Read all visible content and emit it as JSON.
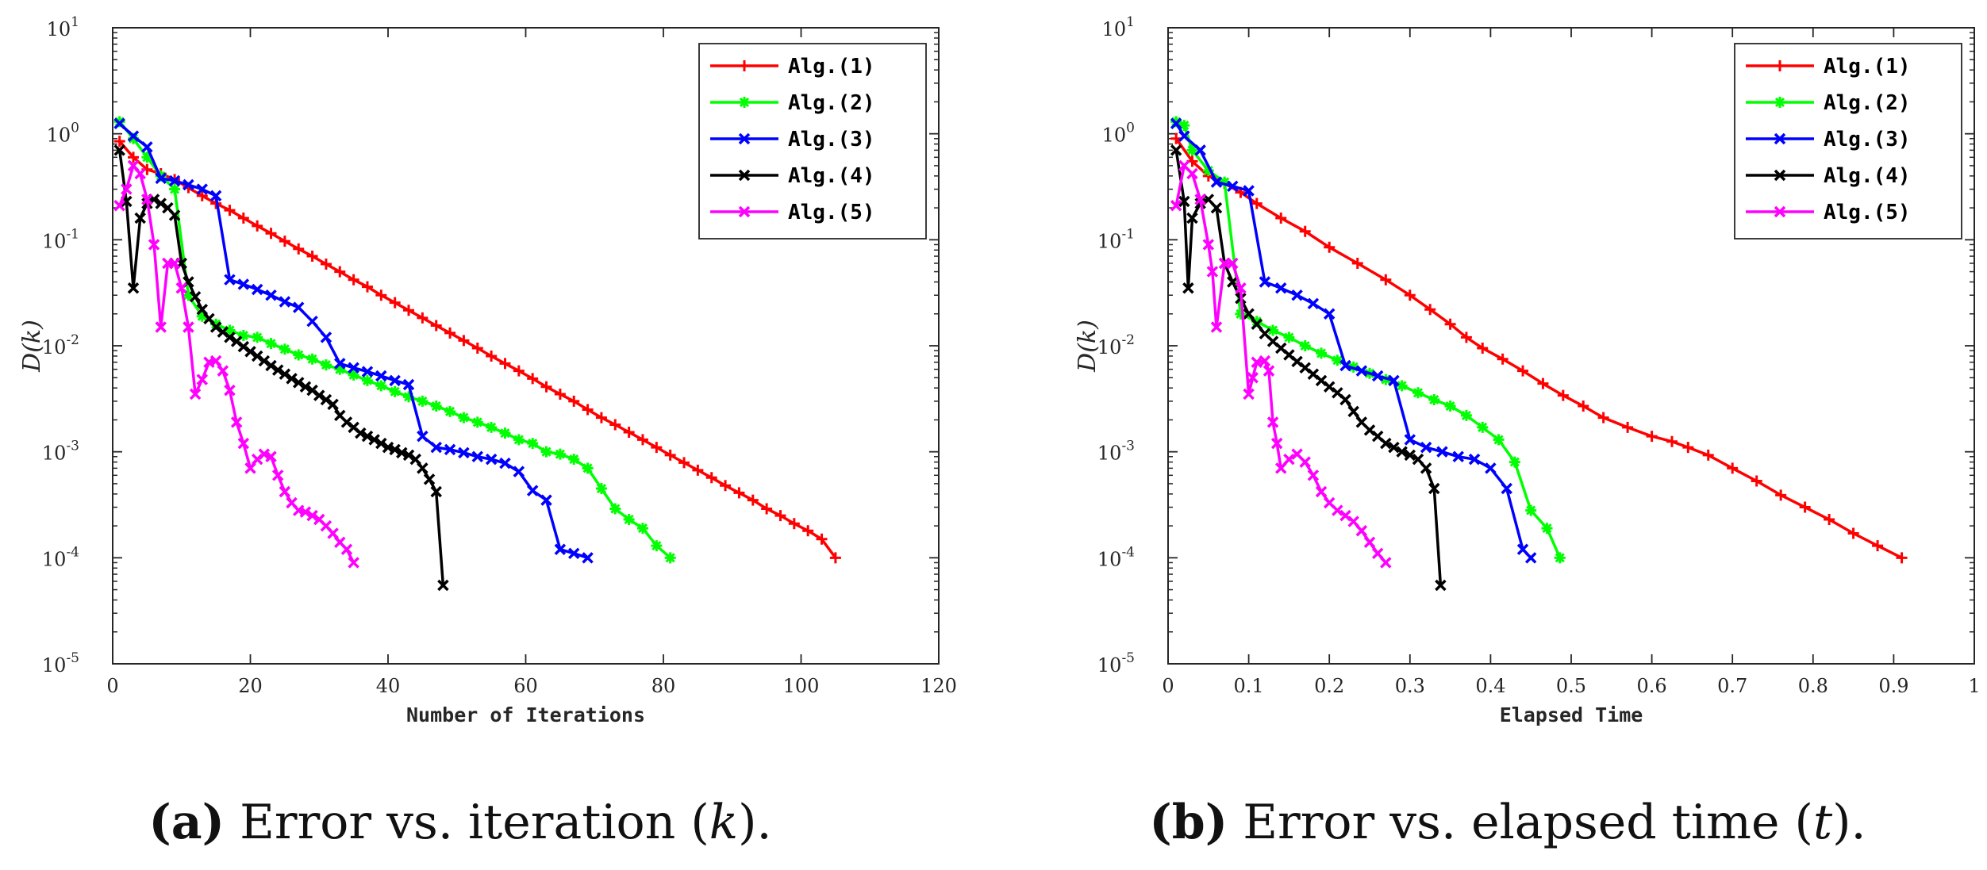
{
  "colors": {
    "alg1": "#ff0000",
    "alg2": "#00ff00",
    "alg3": "#0000ff",
    "alg4": "#000000",
    "alg5": "#ff00ff"
  },
  "chart_data": [
    {
      "type": "line",
      "yscale": "log",
      "xlabel": "Number of Iterations",
      "ylabel": "D(k)",
      "xlim": [
        0,
        120
      ],
      "ylim": [
        1e-05,
        10
      ],
      "xticks": [
        0,
        20,
        40,
        60,
        80,
        100,
        120
      ],
      "xticklabels": [
        "0",
        "20",
        "40",
        "60",
        "80",
        "100",
        "120"
      ],
      "yticks": [
        {
          "base": "10",
          "exp": "1",
          "value": 10
        },
        {
          "base": "10",
          "exp": "0",
          "value": 1
        },
        {
          "base": "10",
          "exp": "-1",
          "value": 0.1
        },
        {
          "base": "10",
          "exp": "-2",
          "value": 0.01
        },
        {
          "base": "10",
          "exp": "-3",
          "value": 0.001
        },
        {
          "base": "10",
          "exp": "-4",
          "value": 0.0001
        },
        {
          "base": "10",
          "exp": "-5",
          "value": 1e-05
        }
      ],
      "legend_position": "top-right",
      "caption": {
        "letter": "(a)",
        "text": " Error vs. iteration (",
        "var": "k",
        "tail": ")."
      },
      "series": [
        {
          "name": "Alg.(1)",
          "color": "#ff0000",
          "marker": "plus",
          "x": [
            1,
            3,
            5,
            7,
            9,
            11,
            13,
            15,
            17,
            19,
            21,
            23,
            25,
            27,
            29,
            31,
            33,
            35,
            37,
            39,
            41,
            43,
            45,
            47,
            49,
            51,
            53,
            55,
            57,
            59,
            61,
            63,
            65,
            67,
            69,
            71,
            73,
            75,
            77,
            79,
            81,
            83,
            85,
            87,
            89,
            91,
            93,
            95,
            97,
            99,
            101,
            103,
            105
          ],
          "y": [
            0.85,
            0.6,
            0.46,
            0.42,
            0.37,
            0.31,
            0.26,
            0.22,
            0.19,
            0.16,
            0.135,
            0.115,
            0.097,
            0.082,
            0.07,
            0.059,
            0.05,
            0.042,
            0.036,
            0.03,
            0.0255,
            0.0216,
            0.0183,
            0.0155,
            0.0132,
            0.0112,
            0.0095,
            0.008,
            0.0068,
            0.0058,
            0.0049,
            0.0041,
            0.0035,
            0.003,
            0.0025,
            0.0021,
            0.0018,
            0.00153,
            0.0013,
            0.0011,
            0.00093,
            0.00079,
            0.00067,
            0.00057,
            0.00048,
            0.00041,
            0.00035,
            0.00029,
            0.00025,
            0.00021,
            0.00018,
            0.00015,
            0.0001
          ]
        },
        {
          "name": "Alg.(2)",
          "color": "#00ff00",
          "marker": "asterisk",
          "x": [
            1,
            3,
            5,
            7,
            9,
            11,
            13,
            15,
            17,
            19,
            21,
            23,
            25,
            27,
            29,
            31,
            33,
            35,
            37,
            39,
            41,
            43,
            45,
            47,
            49,
            51,
            53,
            55,
            57,
            59,
            61,
            63,
            65,
            67,
            69,
            71,
            73,
            75,
            77,
            79,
            81
          ],
          "y": [
            1.3,
            0.9,
            0.6,
            0.4,
            0.3,
            0.03,
            0.019,
            0.016,
            0.014,
            0.0125,
            0.012,
            0.0105,
            0.0093,
            0.0082,
            0.0075,
            0.0066,
            0.006,
            0.0053,
            0.0047,
            0.0042,
            0.0037,
            0.0033,
            0.003,
            0.0027,
            0.0024,
            0.0021,
            0.0019,
            0.0017,
            0.0015,
            0.0013,
            0.0012,
            0.001,
            0.00095,
            0.00085,
            0.0007,
            0.00045,
            0.00029,
            0.00023,
            0.00019,
            0.00013,
            0.0001
          ]
        },
        {
          "name": "Alg.(3)",
          "color": "#0000ff",
          "marker": "x",
          "x": [
            1,
            3,
            5,
            7,
            9,
            11,
            13,
            15,
            17,
            19,
            21,
            23,
            25,
            27,
            29,
            31,
            33,
            35,
            37,
            39,
            41,
            43,
            45,
            47,
            49,
            51,
            53,
            55,
            57,
            59,
            61,
            63,
            65,
            67,
            69
          ],
          "y": [
            1.25,
            0.95,
            0.75,
            0.38,
            0.36,
            0.33,
            0.3,
            0.26,
            0.042,
            0.038,
            0.034,
            0.03,
            0.026,
            0.023,
            0.017,
            0.012,
            0.0068,
            0.0062,
            0.0057,
            0.0052,
            0.0047,
            0.0043,
            0.0014,
            0.0011,
            0.00105,
            0.00098,
            0.0009,
            0.00085,
            0.00078,
            0.00065,
            0.00043,
            0.00035,
            0.00012,
            0.00011,
            0.0001
          ]
        },
        {
          "name": "Alg.(4)",
          "color": "#000000",
          "marker": "x",
          "x": [
            1,
            2,
            3,
            4,
            5,
            6,
            7,
            8,
            9,
            10,
            11,
            12,
            13,
            14,
            15,
            16,
            17,
            18,
            19,
            20,
            21,
            22,
            23,
            24,
            25,
            26,
            27,
            28,
            29,
            30,
            31,
            32,
            33,
            34,
            35,
            36,
            37,
            38,
            39,
            40,
            41,
            42,
            43,
            44,
            45,
            46,
            47,
            48
          ],
          "y": [
            0.7,
            0.23,
            0.035,
            0.16,
            0.22,
            0.24,
            0.22,
            0.2,
            0.17,
            0.06,
            0.04,
            0.029,
            0.022,
            0.018,
            0.015,
            0.0135,
            0.012,
            0.011,
            0.0098,
            0.0088,
            0.008,
            0.0072,
            0.0065,
            0.0059,
            0.0054,
            0.0049,
            0.0045,
            0.0041,
            0.0038,
            0.0034,
            0.0031,
            0.0028,
            0.0022,
            0.0019,
            0.0017,
            0.0015,
            0.0014,
            0.0013,
            0.0012,
            0.0011,
            0.00105,
            0.00098,
            0.00093,
            0.00085,
            0.0007,
            0.00055,
            0.00042,
            5.5e-05
          ]
        },
        {
          "name": "Alg.(5)",
          "color": "#ff00ff",
          "marker": "x",
          "x": [
            1,
            2,
            3,
            4,
            5,
            6,
            7,
            8,
            9,
            10,
            11,
            12,
            13,
            14,
            15,
            16,
            17,
            18,
            19,
            20,
            21,
            22,
            23,
            24,
            25,
            26,
            27,
            28,
            29,
            30,
            31,
            32,
            33,
            34,
            35
          ],
          "y": [
            0.21,
            0.3,
            0.5,
            0.42,
            0.24,
            0.09,
            0.015,
            0.06,
            0.06,
            0.035,
            0.015,
            0.0035,
            0.0048,
            0.007,
            0.0072,
            0.0058,
            0.0038,
            0.0019,
            0.0012,
            0.0007,
            0.00085,
            0.00095,
            0.0009,
            0.0006,
            0.00042,
            0.00033,
            0.00028,
            0.00027,
            0.00025,
            0.00023,
            0.0002,
            0.00017,
            0.00014,
            0.00012,
            9e-05
          ]
        }
      ]
    },
    {
      "type": "line",
      "yscale": "log",
      "xlabel": "Elapsed Time",
      "ylabel": "D(k)",
      "xlim": [
        0,
        1
      ],
      "ylim": [
        1e-05,
        10
      ],
      "xticks": [
        0,
        0.1,
        0.2,
        0.3,
        0.4,
        0.5,
        0.6,
        0.7,
        0.8,
        0.9,
        1
      ],
      "xticklabels": [
        "0",
        "0.1",
        "0.2",
        "0.3",
        "0.4",
        "0.5",
        "0.6",
        "0.7",
        "0.8",
        "0.9",
        "1"
      ],
      "yticks": [
        {
          "base": "10",
          "exp": "1",
          "value": 10
        },
        {
          "base": "10",
          "exp": "0",
          "value": 1
        },
        {
          "base": "10",
          "exp": "-1",
          "value": 0.1
        },
        {
          "base": "10",
          "exp": "-2",
          "value": 0.01
        },
        {
          "base": "10",
          "exp": "-3",
          "value": 0.001
        },
        {
          "base": "10",
          "exp": "-4",
          "value": 0.0001
        },
        {
          "base": "10",
          "exp": "-5",
          "value": 1e-05
        }
      ],
      "legend_position": "top-right",
      "caption": {
        "letter": "(b)",
        "text": " Error vs. elapsed time (",
        "var": "t",
        "tail": ")."
      },
      "series": [
        {
          "name": "Alg.(1)",
          "color": "#ff0000",
          "marker": "plus",
          "x": [
            0.01,
            0.03,
            0.05,
            0.07,
            0.09,
            0.11,
            0.14,
            0.17,
            0.2,
            0.235,
            0.27,
            0.3,
            0.325,
            0.35,
            0.37,
            0.39,
            0.415,
            0.44,
            0.465,
            0.49,
            0.515,
            0.54,
            0.57,
            0.6,
            0.625,
            0.645,
            0.67,
            0.7,
            0.73,
            0.76,
            0.79,
            0.82,
            0.85,
            0.88,
            0.91
          ],
          "y": [
            0.9,
            0.55,
            0.4,
            0.34,
            0.28,
            0.22,
            0.16,
            0.12,
            0.085,
            0.06,
            0.042,
            0.03,
            0.022,
            0.016,
            0.012,
            0.0095,
            0.0075,
            0.0058,
            0.0044,
            0.0034,
            0.0027,
            0.0021,
            0.0017,
            0.0014,
            0.00125,
            0.0011,
            0.00093,
            0.0007,
            0.00053,
            0.00039,
            0.0003,
            0.00023,
            0.00017,
            0.00013,
            0.0001
          ]
        },
        {
          "name": "Alg.(2)",
          "color": "#00ff00",
          "marker": "asterisk",
          "x": [
            0.01,
            0.02,
            0.03,
            0.05,
            0.07,
            0.09,
            0.11,
            0.13,
            0.15,
            0.17,
            0.19,
            0.21,
            0.23,
            0.25,
            0.27,
            0.29,
            0.31,
            0.33,
            0.35,
            0.37,
            0.39,
            0.41,
            0.43,
            0.45,
            0.47,
            0.486
          ],
          "y": [
            1.3,
            1.2,
            0.7,
            0.45,
            0.35,
            0.02,
            0.017,
            0.014,
            0.012,
            0.01,
            0.0085,
            0.0073,
            0.0063,
            0.0055,
            0.0048,
            0.0042,
            0.0036,
            0.0031,
            0.0027,
            0.0022,
            0.0017,
            0.0013,
            0.0008,
            0.00028,
            0.00019,
            0.0001
          ]
        },
        {
          "name": "Alg.(3)",
          "color": "#0000ff",
          "marker": "x",
          "x": [
            0.01,
            0.02,
            0.04,
            0.06,
            0.08,
            0.1,
            0.12,
            0.14,
            0.16,
            0.18,
            0.2,
            0.22,
            0.24,
            0.26,
            0.28,
            0.3,
            0.32,
            0.34,
            0.36,
            0.38,
            0.4,
            0.42,
            0.44,
            0.45
          ],
          "y": [
            1.25,
            0.95,
            0.7,
            0.35,
            0.32,
            0.29,
            0.04,
            0.035,
            0.03,
            0.025,
            0.02,
            0.0065,
            0.0058,
            0.0052,
            0.0047,
            0.0013,
            0.0011,
            0.001,
            0.0009,
            0.00085,
            0.0007,
            0.00045,
            0.00012,
            0.0001
          ]
        },
        {
          "name": "Alg.(4)",
          "color": "#000000",
          "marker": "x",
          "x": [
            0.01,
            0.02,
            0.025,
            0.03,
            0.04,
            0.05,
            0.06,
            0.07,
            0.08,
            0.09,
            0.1,
            0.11,
            0.12,
            0.13,
            0.14,
            0.15,
            0.16,
            0.17,
            0.18,
            0.19,
            0.2,
            0.21,
            0.22,
            0.23,
            0.24,
            0.25,
            0.26,
            0.27,
            0.28,
            0.29,
            0.3,
            0.31,
            0.32,
            0.33,
            0.338
          ],
          "y": [
            0.7,
            0.23,
            0.035,
            0.16,
            0.22,
            0.24,
            0.2,
            0.06,
            0.04,
            0.028,
            0.02,
            0.016,
            0.013,
            0.011,
            0.0095,
            0.0082,
            0.0071,
            0.0062,
            0.0054,
            0.0047,
            0.0041,
            0.0036,
            0.0031,
            0.0024,
            0.0019,
            0.0016,
            0.0014,
            0.0012,
            0.0011,
            0.001,
            0.00093,
            0.00085,
            0.0007,
            0.00045,
            5.5e-05
          ]
        },
        {
          "name": "Alg.(5)",
          "color": "#ff00ff",
          "marker": "x",
          "x": [
            0.01,
            0.02,
            0.03,
            0.04,
            0.05,
            0.055,
            0.06,
            0.07,
            0.08,
            0.09,
            0.1,
            0.105,
            0.11,
            0.12,
            0.125,
            0.13,
            0.135,
            0.14,
            0.15,
            0.16,
            0.17,
            0.18,
            0.19,
            0.2,
            0.21,
            0.22,
            0.23,
            0.24,
            0.25,
            0.26,
            0.27
          ],
          "y": [
            0.21,
            0.5,
            0.42,
            0.24,
            0.09,
            0.05,
            0.015,
            0.06,
            0.06,
            0.035,
            0.0035,
            0.005,
            0.007,
            0.0072,
            0.0058,
            0.0019,
            0.0012,
            0.0007,
            0.00085,
            0.00095,
            0.0008,
            0.0006,
            0.00042,
            0.00033,
            0.00028,
            0.00025,
            0.00022,
            0.00018,
            0.00014,
            0.00011,
            9e-05
          ]
        }
      ]
    }
  ]
}
